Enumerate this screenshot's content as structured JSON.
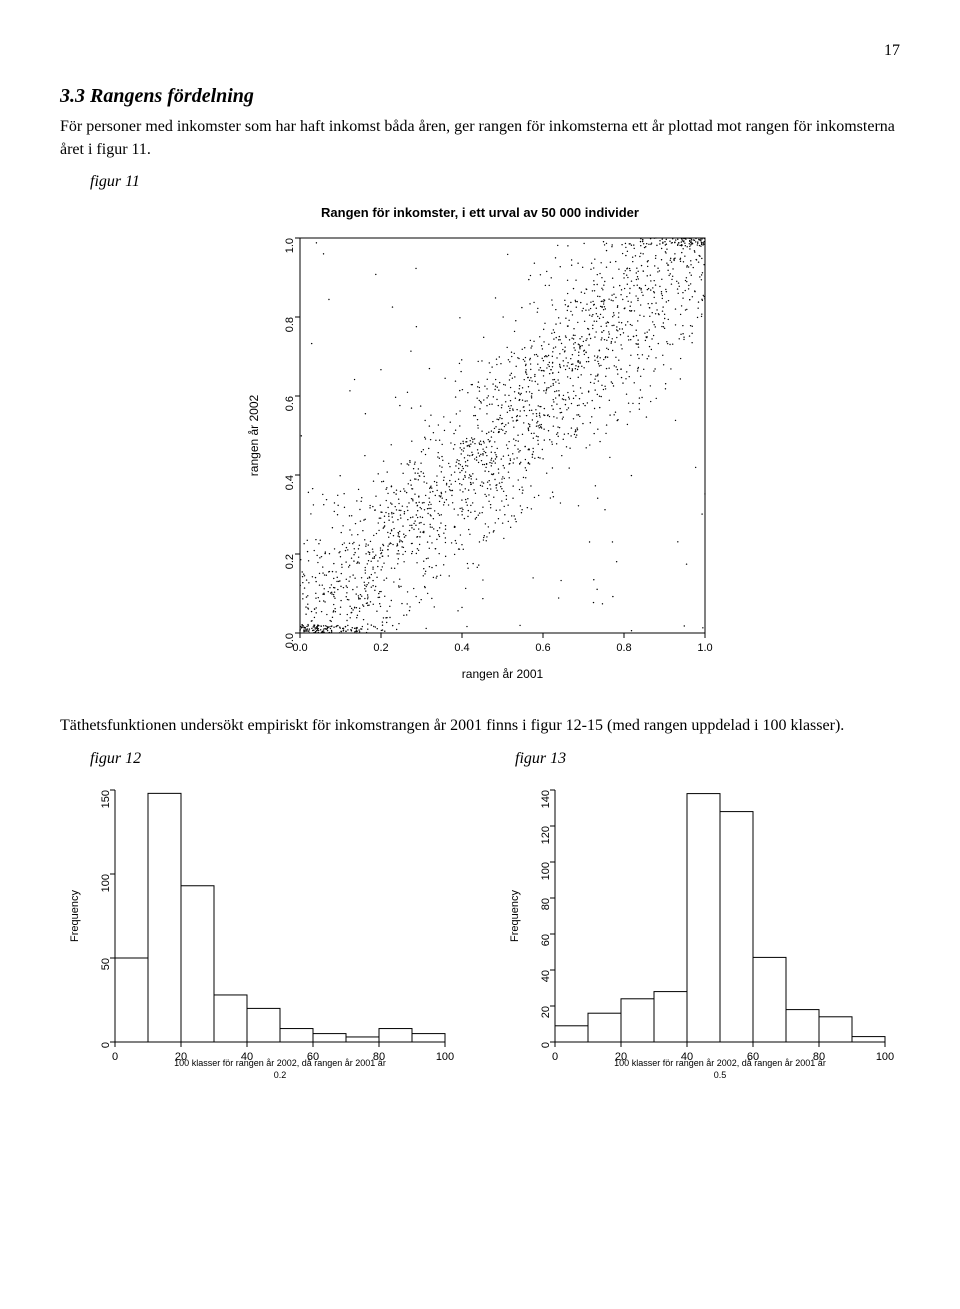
{
  "page_number": "17",
  "section_heading": "3.3 Rangens fördelning",
  "para1": "För personer med inkomster som har haft inkomst båda åren, ger rangen för inkomsterna ett år plottad mot rangen för inkomsterna året i figur 11.",
  "fig11_caption": "figur 11",
  "scatter": {
    "type": "scatter",
    "title": "Rangen för inkomster, i ett urval av  50 000 individer",
    "xlabel": "rangen år 2001",
    "ylabel": "rangen år 2002",
    "xlim": [
      0,
      1
    ],
    "ylim": [
      0,
      1
    ],
    "xticks": [
      0.0,
      0.2,
      0.4,
      0.6,
      0.8,
      1.0
    ],
    "yticks": [
      0.0,
      0.2,
      0.4,
      0.6,
      0.8,
      1.0
    ],
    "xtick_labels": [
      "0.0",
      "0.2",
      "0.4",
      "0.6",
      "0.8",
      "1.0"
    ],
    "ytick_labels": [
      "0.0",
      "0.2",
      "0.4",
      "0.6",
      "0.8",
      "1.0"
    ],
    "n_points": 2200,
    "marker_color": "#000000",
    "marker_size": 0.7,
    "background_color": "#ffffff",
    "axis_color": "#000000",
    "diagonal_spread": 0.12,
    "label_fontsize": 12,
    "tick_fontsize": 11,
    "title_fontsize": 13
  },
  "para2": "Täthetsfunktionen undersökt empiriskt för inkomstrangen år 2001 finns i figur 12-15  (med rangen uppdelad i 100 klasser).",
  "fig12_caption": "figur 12",
  "fig13_caption": "figur 13",
  "hist_left": {
    "type": "histogram",
    "ylabel": "Frequency",
    "xlabel": "100 klasser för rangen år 2002, då rangen år 2001 är\n0.2",
    "xlim": [
      0,
      100
    ],
    "ylim": [
      0,
      150
    ],
    "xticks": [
      0,
      20,
      40,
      60,
      80,
      100
    ],
    "yticks": [
      0,
      50,
      100,
      150
    ],
    "bin_width": 10,
    "bars": [
      50,
      148,
      93,
      28,
      20,
      8,
      5,
      3,
      8,
      5
    ],
    "bar_fill": "#ffffff",
    "bar_stroke": "#000000",
    "background_color": "#ffffff",
    "axis_color": "#000000",
    "label_fontsize": 11,
    "tick_fontsize": 11
  },
  "hist_right": {
    "type": "histogram",
    "ylabel": "Frequency",
    "xlabel": "100 klasser för rangen år 2002, då rangen år 2001 är\n0.5",
    "xlim": [
      0,
      100
    ],
    "ylim": [
      0,
      140
    ],
    "xticks": [
      0,
      20,
      40,
      60,
      80,
      100
    ],
    "yticks": [
      0,
      20,
      40,
      60,
      80,
      100,
      120,
      140
    ],
    "bin_width": 10,
    "bars": [
      9,
      16,
      24,
      28,
      138,
      128,
      47,
      18,
      14,
      3
    ],
    "bar_fill": "#ffffff",
    "bar_stroke": "#000000",
    "background_color": "#ffffff",
    "axis_color": "#000000",
    "label_fontsize": 11,
    "tick_fontsize": 11
  }
}
